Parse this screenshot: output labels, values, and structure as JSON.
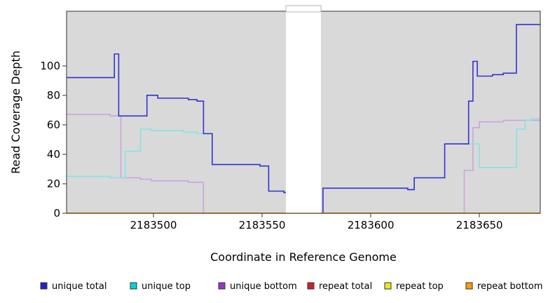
{
  "chart_data": {
    "type": "line",
    "line_style": "step",
    "title": "",
    "xlabel": "Coordinate in Reference Genome",
    "ylabel": "Read Coverage Depth",
    "xlim": [
      2183460,
      2183678
    ],
    "ylim": [
      0,
      137
    ],
    "x_ticks": [
      2183500,
      2183550,
      2183600,
      2183650
    ],
    "y_ticks": [
      0,
      20,
      40,
      60,
      80,
      100
    ],
    "plot_background": "#d9d9d9",
    "page_background": "#ffffff",
    "axis_color": "#333333",
    "grid": false,
    "mask_region": {
      "x0": 2183561,
      "x1": 2183577,
      "color": "#ffffff",
      "notch_border": "#b3b3b3"
    },
    "series": [
      {
        "name": "unique bottom",
        "color": "#9933cc",
        "line_color": "#c9a4e0",
        "points": [
          [
            2183460,
            67
          ],
          [
            2183480,
            66
          ],
          [
            2183485,
            24
          ],
          [
            2183494,
            23
          ],
          [
            2183499,
            22
          ],
          [
            2183516,
            21
          ],
          [
            2183523,
            0
          ],
          [
            2183643,
            29
          ],
          [
            2183647,
            58
          ],
          [
            2183650,
            62
          ],
          [
            2183661,
            63
          ],
          [
            2183678,
            63
          ]
        ]
      },
      {
        "name": "unique top",
        "color": "#00d4d4",
        "line_color": "#86e3e3",
        "points": [
          [
            2183460,
            25
          ],
          [
            2183480,
            24
          ],
          [
            2183487,
            42
          ],
          [
            2183494,
            57
          ],
          [
            2183499,
            56
          ],
          [
            2183514,
            55
          ],
          [
            2183520,
            54
          ],
          [
            2183527,
            33
          ],
          [
            2183549,
            32
          ],
          [
            2183553,
            15
          ],
          [
            2183560,
            14
          ],
          [
            2183562,
            0
          ],
          [
            2183578,
            17
          ],
          [
            2183617,
            16
          ],
          [
            2183620,
            24
          ],
          [
            2183634,
            47
          ],
          [
            2183650,
            31
          ],
          [
            2183667,
            57
          ],
          [
            2183671,
            63
          ],
          [
            2183674,
            64
          ],
          [
            2183678,
            64
          ]
        ]
      },
      {
        "name": "unique total",
        "color": "#2222cc",
        "line_color": "#3333cc",
        "points": [
          [
            2183460,
            92
          ],
          [
            2183482,
            108
          ],
          [
            2183484,
            66
          ],
          [
            2183497,
            80
          ],
          [
            2183502,
            78
          ],
          [
            2183516,
            77
          ],
          [
            2183520,
            76
          ],
          [
            2183523,
            54
          ],
          [
            2183527,
            33
          ],
          [
            2183549,
            32
          ],
          [
            2183553,
            15
          ],
          [
            2183560,
            14
          ],
          [
            2183562,
            0
          ],
          [
            2183578,
            17
          ],
          [
            2183617,
            16
          ],
          [
            2183620,
            24
          ],
          [
            2183634,
            47
          ],
          [
            2183645,
            76
          ],
          [
            2183647,
            103
          ],
          [
            2183649,
            93
          ],
          [
            2183656,
            94
          ],
          [
            2183661,
            95
          ],
          [
            2183667,
            128
          ],
          [
            2183678,
            128
          ]
        ]
      },
      {
        "name": "repeat total",
        "color": "#cc2222",
        "line_color": "#cc2222",
        "points": [
          [
            2183460,
            0
          ],
          [
            2183678,
            0
          ]
        ]
      },
      {
        "name": "repeat top",
        "color": "#f0e61e",
        "line_color": "#f0e61e",
        "points": [
          [
            2183460,
            0
          ],
          [
            2183678,
            0
          ]
        ]
      },
      {
        "name": "repeat bottom",
        "color": "#ff9d00",
        "line_color": "#ffab2e",
        "points": [
          [
            2183460,
            0
          ],
          [
            2183678,
            0
          ]
        ]
      }
    ],
    "legend": {
      "position": "bottom",
      "entries": [
        {
          "label": "unique total",
          "color": "#2222cc"
        },
        {
          "label": "unique top",
          "color": "#00d4d4"
        },
        {
          "label": "unique bottom",
          "color": "#9933cc"
        },
        {
          "label": "repeat total",
          "color": "#cc2222"
        },
        {
          "label": "repeat top",
          "color": "#f0e61e"
        },
        {
          "label": "repeat bottom",
          "color": "#ff9d00"
        }
      ]
    }
  }
}
